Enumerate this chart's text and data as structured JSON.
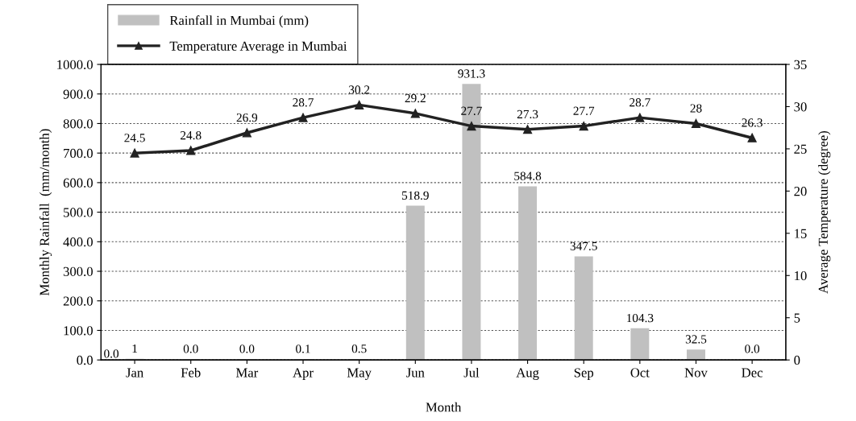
{
  "chart_data": {
    "type": "bar",
    "xlabel": "Month",
    "ylabel": "Monthly Rainfall  (mm/month)",
    "y2label": "Average Temperature (degree)",
    "categories": [
      "Jan",
      "Feb",
      "Mar",
      "Apr",
      "May",
      "Jun",
      "Jul",
      "Aug",
      "Sep",
      "Oct",
      "Nov",
      "Dec"
    ],
    "series": [
      {
        "name": "Rainfall in Mumbai (mm)",
        "color": "#c0c0c0",
        "values": [
          1,
          0.0,
          0.0,
          0.1,
          0.5,
          518.9,
          931.3,
          584.8,
          347.5,
          104.3,
          32.5,
          0.0
        ],
        "value_labels": [
          "1",
          "0.0",
          "0.0",
          "0.1",
          "0.5",
          "518.9",
          "931.3",
          "584.8",
          "347.5",
          "104.3",
          "32.5",
          "0.0"
        ]
      },
      {
        "name": "Temperature Average in Mumbai",
        "type": "line",
        "axis": "y2",
        "color": "#222222",
        "marker": "triangle",
        "line_style": "solid",
        "values": [
          24.5,
          24.8,
          26.9,
          28.7,
          30.2,
          29.2,
          27.7,
          27.3,
          27.7,
          28.7,
          28,
          26.3
        ],
        "value_labels": [
          "24.5",
          "24.8",
          "26.9",
          "28.7",
          "30.2",
          "29.2",
          "27.7",
          "27.3",
          "27.7",
          "28.7",
          "28",
          "26.3"
        ]
      }
    ],
    "annotations": [
      {
        "text": "0.0",
        "x": "Jan",
        "y": 0
      }
    ],
    "ylim": [
      0,
      1000
    ],
    "yticks": [
      {
        "value": 0,
        "label": "0.0"
      },
      {
        "value": 100,
        "label": "100.0"
      },
      {
        "value": 200,
        "label": "200.0"
      },
      {
        "value": 300,
        "label": "300.0"
      },
      {
        "value": 400,
        "label": "400.0"
      },
      {
        "value": 500,
        "label": "500.0"
      },
      {
        "value": 600,
        "label": "600.0"
      },
      {
        "value": 700,
        "label": "700.0"
      },
      {
        "value": 800,
        "label": "800.0"
      },
      {
        "value": 900,
        "label": "900.0"
      },
      {
        "value": 1000,
        "label": "1000.0"
      }
    ],
    "y2lim": [
      0,
      35
    ],
    "y2ticks": [
      0,
      5,
      10,
      15,
      20,
      25,
      30,
      35
    ],
    "grid": "y",
    "legend": "top left"
  }
}
